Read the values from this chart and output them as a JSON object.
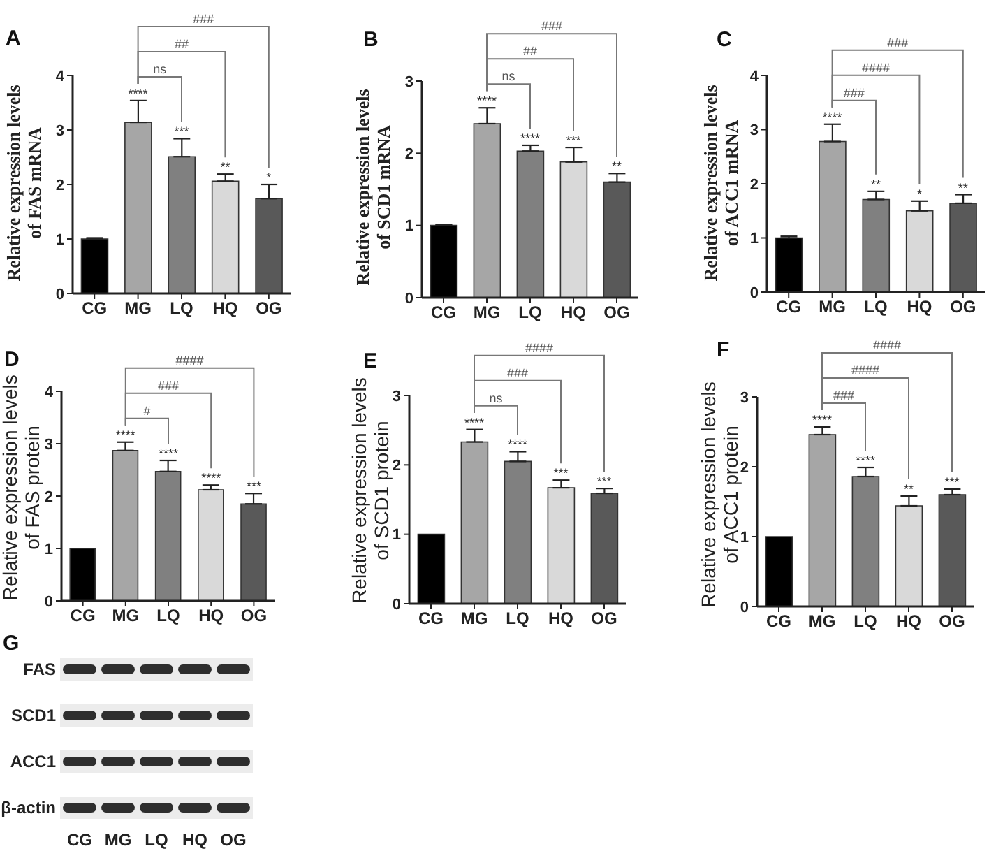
{
  "chart_data": [
    {
      "type": "bar",
      "title": "A",
      "ylabel": "Relative expression levels of FAS mRNA",
      "categories": [
        "CG",
        "MG",
        "LQ",
        "HQ",
        "OG"
      ],
      "values": [
        1,
        3.14,
        2.51,
        2.06,
        1.74
      ],
      "colors": [
        "#000000",
        "#a6a6a6",
        "#808080",
        "#d9d9d9",
        "#595959"
      ],
      "errors": [
        0.02,
        0.4,
        0.33,
        0.13,
        0.26
      ],
      "value_labels": [
        null,
        "****",
        "***",
        "**",
        "*"
      ],
      "annotations": [
        "ns",
        "##",
        "###"
      ],
      "ylim": [
        0,
        4
      ],
      "yticks": [
        0,
        1,
        2,
        3,
        4
      ]
    },
    {
      "type": "bar",
      "title": "B",
      "ylabel": "Relative expression levels of SCD1 mRNA",
      "categories": [
        "CG",
        "MG",
        "LQ",
        "HQ",
        "OG"
      ],
      "values": [
        1,
        2.41,
        2.03,
        1.88,
        1.6
      ],
      "colors": [
        "#000000",
        "#a6a6a6",
        "#808080",
        "#d9d9d9",
        "#595959"
      ],
      "errors": [
        0.01,
        0.22,
        0.08,
        0.2,
        0.12
      ],
      "value_labels": [
        null,
        "****",
        "****",
        "***",
        "**"
      ],
      "annotations": [
        "ns",
        "##",
        "###"
      ],
      "ylim": [
        0,
        3
      ],
      "yticks": [
        0,
        1,
        2,
        3
      ]
    },
    {
      "type": "bar",
      "title": "C",
      "ylabel": "Relative expression levels of ACC1 mRNA",
      "categories": [
        "CG",
        "MG",
        "LQ",
        "HQ",
        "OG"
      ],
      "values": [
        1,
        2.78,
        1.71,
        1.5,
        1.64
      ],
      "colors": [
        "#000000",
        "#a6a6a6",
        "#808080",
        "#d9d9d9",
        "#595959"
      ],
      "errors": [
        0.03,
        0.32,
        0.15,
        0.18,
        0.16
      ],
      "value_labels": [
        null,
        "****",
        "**",
        "*",
        "**"
      ],
      "annotations": [
        "###",
        "####",
        "###"
      ],
      "ylim": [
        0,
        4
      ],
      "yticks": [
        0,
        1,
        2,
        3,
        4
      ]
    },
    {
      "type": "bar",
      "title": "D",
      "ylabel": "Relative expression levels of FAS protein",
      "categories": [
        "CG",
        "MG",
        "LQ",
        "HQ",
        "OG"
      ],
      "values": [
        1,
        2.87,
        2.47,
        2.12,
        1.85
      ],
      "colors": [
        "#000000",
        "#a6a6a6",
        "#808080",
        "#d9d9d9",
        "#595959"
      ],
      "errors": [
        null,
        0.16,
        0.21,
        0.09,
        0.2
      ],
      "value_labels": [
        null,
        "****",
        "****",
        "****",
        "***"
      ],
      "annotations": [
        "#",
        "###",
        "####"
      ],
      "ylim": [
        0,
        4
      ],
      "yticks": [
        0,
        1,
        2,
        3,
        4
      ]
    },
    {
      "type": "bar",
      "title": "E",
      "ylabel": "Relative expression levels of SCD1 protein",
      "categories": [
        "CG",
        "MG",
        "LQ",
        "HQ",
        "OG"
      ],
      "values": [
        1,
        2.33,
        2.05,
        1.67,
        1.59
      ],
      "colors": [
        "#000000",
        "#a6a6a6",
        "#808080",
        "#d9d9d9",
        "#595959"
      ],
      "errors": [
        null,
        0.18,
        0.14,
        0.11,
        0.07
      ],
      "value_labels": [
        null,
        "****",
        "****",
        "***",
        "***"
      ],
      "annotations": [
        "ns",
        "###",
        "####"
      ],
      "ylim": [
        0,
        3
      ],
      "yticks": [
        0,
        1,
        2,
        3
      ]
    },
    {
      "type": "bar",
      "title": "F",
      "ylabel": "Relative expression levels of ACC1 protein",
      "categories": [
        "CG",
        "MG",
        "LQ",
        "HQ",
        "OG"
      ],
      "values": [
        1,
        2.46,
        1.86,
        1.44,
        1.6
      ],
      "colors": [
        "#000000",
        "#a6a6a6",
        "#808080",
        "#d9d9d9",
        "#595959"
      ],
      "errors": [
        null,
        0.11,
        0.13,
        0.14,
        0.08
      ],
      "value_labels": [
        null,
        "****",
        "****",
        "**",
        "***"
      ],
      "annotations": [
        "###",
        "####",
        "####"
      ],
      "ylim": [
        0,
        3
      ],
      "yticks": [
        0,
        1,
        2,
        3
      ]
    },
    {
      "type": "other",
      "title": "G",
      "categories": [
        "CG",
        "MG",
        "LQ",
        "HQ",
        "OG"
      ],
      "y_categories": [
        "FAS",
        "SCD1",
        "ACC1",
        "β-actin"
      ]
    }
  ]
}
